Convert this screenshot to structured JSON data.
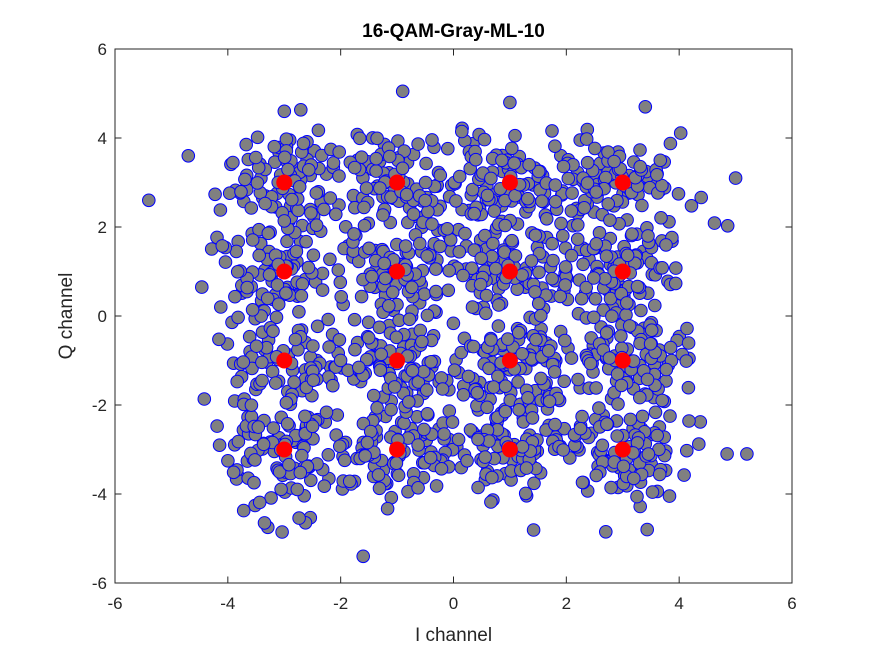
{
  "chart_data": {
    "type": "scatter",
    "title": "16-QAM-Gray-ML-10",
    "xlabel": "I channel",
    "ylabel": "Q channel",
    "xlim": [
      -6,
      6
    ],
    "ylim": [
      -6,
      6
    ],
    "xticks": [
      "-6",
      "-4",
      "-2",
      "0",
      "2",
      "4",
      "6"
    ],
    "yticks": [
      "-6",
      "-4",
      "-2",
      "0",
      "2",
      "4",
      "6"
    ],
    "grid": false,
    "box": true,
    "series": [
      {
        "role": "received-samples",
        "marker": "circle",
        "fill": "#808080",
        "edge": "#0000ff",
        "cloud": {
          "count": 1600,
          "centers": [
            -3,
            -1,
            1,
            3
          ],
          "spread_std": 0.6
        },
        "outliers": [
          {
            "x": -5.4,
            "y": 2.6
          },
          {
            "x": -1.6,
            "y": -5.4
          },
          {
            "x": -0.9,
            "y": 5.05
          },
          {
            "x": 5.2,
            "y": -3.1
          },
          {
            "x": 5.0,
            "y": 3.1
          },
          {
            "x": -4.7,
            "y": 3.6
          },
          {
            "x": 4.85,
            "y": -3.1
          },
          {
            "x": 2.7,
            "y": -4.85
          },
          {
            "x": -3.35,
            "y": -4.65
          },
          {
            "x": 1.0,
            "y": 4.8
          },
          {
            "x": -3.0,
            "y": 4.6
          },
          {
            "x": 3.4,
            "y": 4.7
          }
        ]
      },
      {
        "role": "constellation-points",
        "marker": "circle",
        "fill": "#ff0000",
        "edge": "#ff0000",
        "points": [
          {
            "x": -3,
            "y": 3
          },
          {
            "x": -1,
            "y": 3
          },
          {
            "x": 1,
            "y": 3
          },
          {
            "x": 3,
            "y": 3
          },
          {
            "x": -3,
            "y": 1
          },
          {
            "x": -1,
            "y": 1
          },
          {
            "x": 1,
            "y": 1
          },
          {
            "x": 3,
            "y": 1
          },
          {
            "x": -3,
            "y": -1
          },
          {
            "x": -1,
            "y": -1
          },
          {
            "x": 1,
            "y": -1
          },
          {
            "x": 3,
            "y": -1
          },
          {
            "x": -3,
            "y": -3
          },
          {
            "x": -1,
            "y": -3
          },
          {
            "x": 1,
            "y": -3
          },
          {
            "x": 3,
            "y": -3
          }
        ]
      }
    ]
  }
}
